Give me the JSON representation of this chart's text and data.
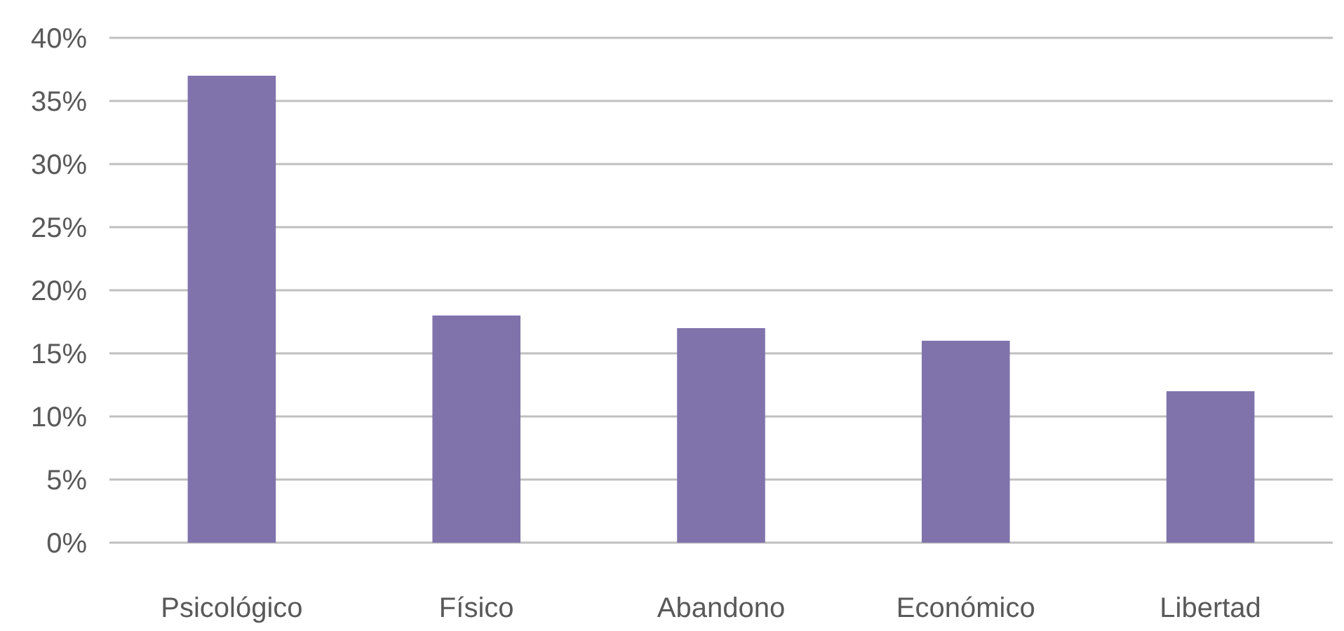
{
  "chart_data": {
    "type": "bar",
    "categories": [
      "Psicológico",
      "Físico",
      "Abandono",
      "Económico",
      "Libertad"
    ],
    "values": [
      37,
      18,
      17,
      16,
      12
    ],
    "color": "#8073ac",
    "ylim": [
      0,
      40
    ],
    "yticks": [
      {
        "value": 0,
        "label": "0%"
      },
      {
        "value": 5,
        "label": "5%"
      },
      {
        "value": 10,
        "label": "10%"
      },
      {
        "value": 15,
        "label": "15%"
      },
      {
        "value": 20,
        "label": "20%"
      },
      {
        "value": 25,
        "label": "25%"
      },
      {
        "value": 30,
        "label": "30%"
      },
      {
        "value": 35,
        "label": "35%"
      },
      {
        "value": 40,
        "label": "40%"
      }
    ],
    "grid": "y"
  }
}
